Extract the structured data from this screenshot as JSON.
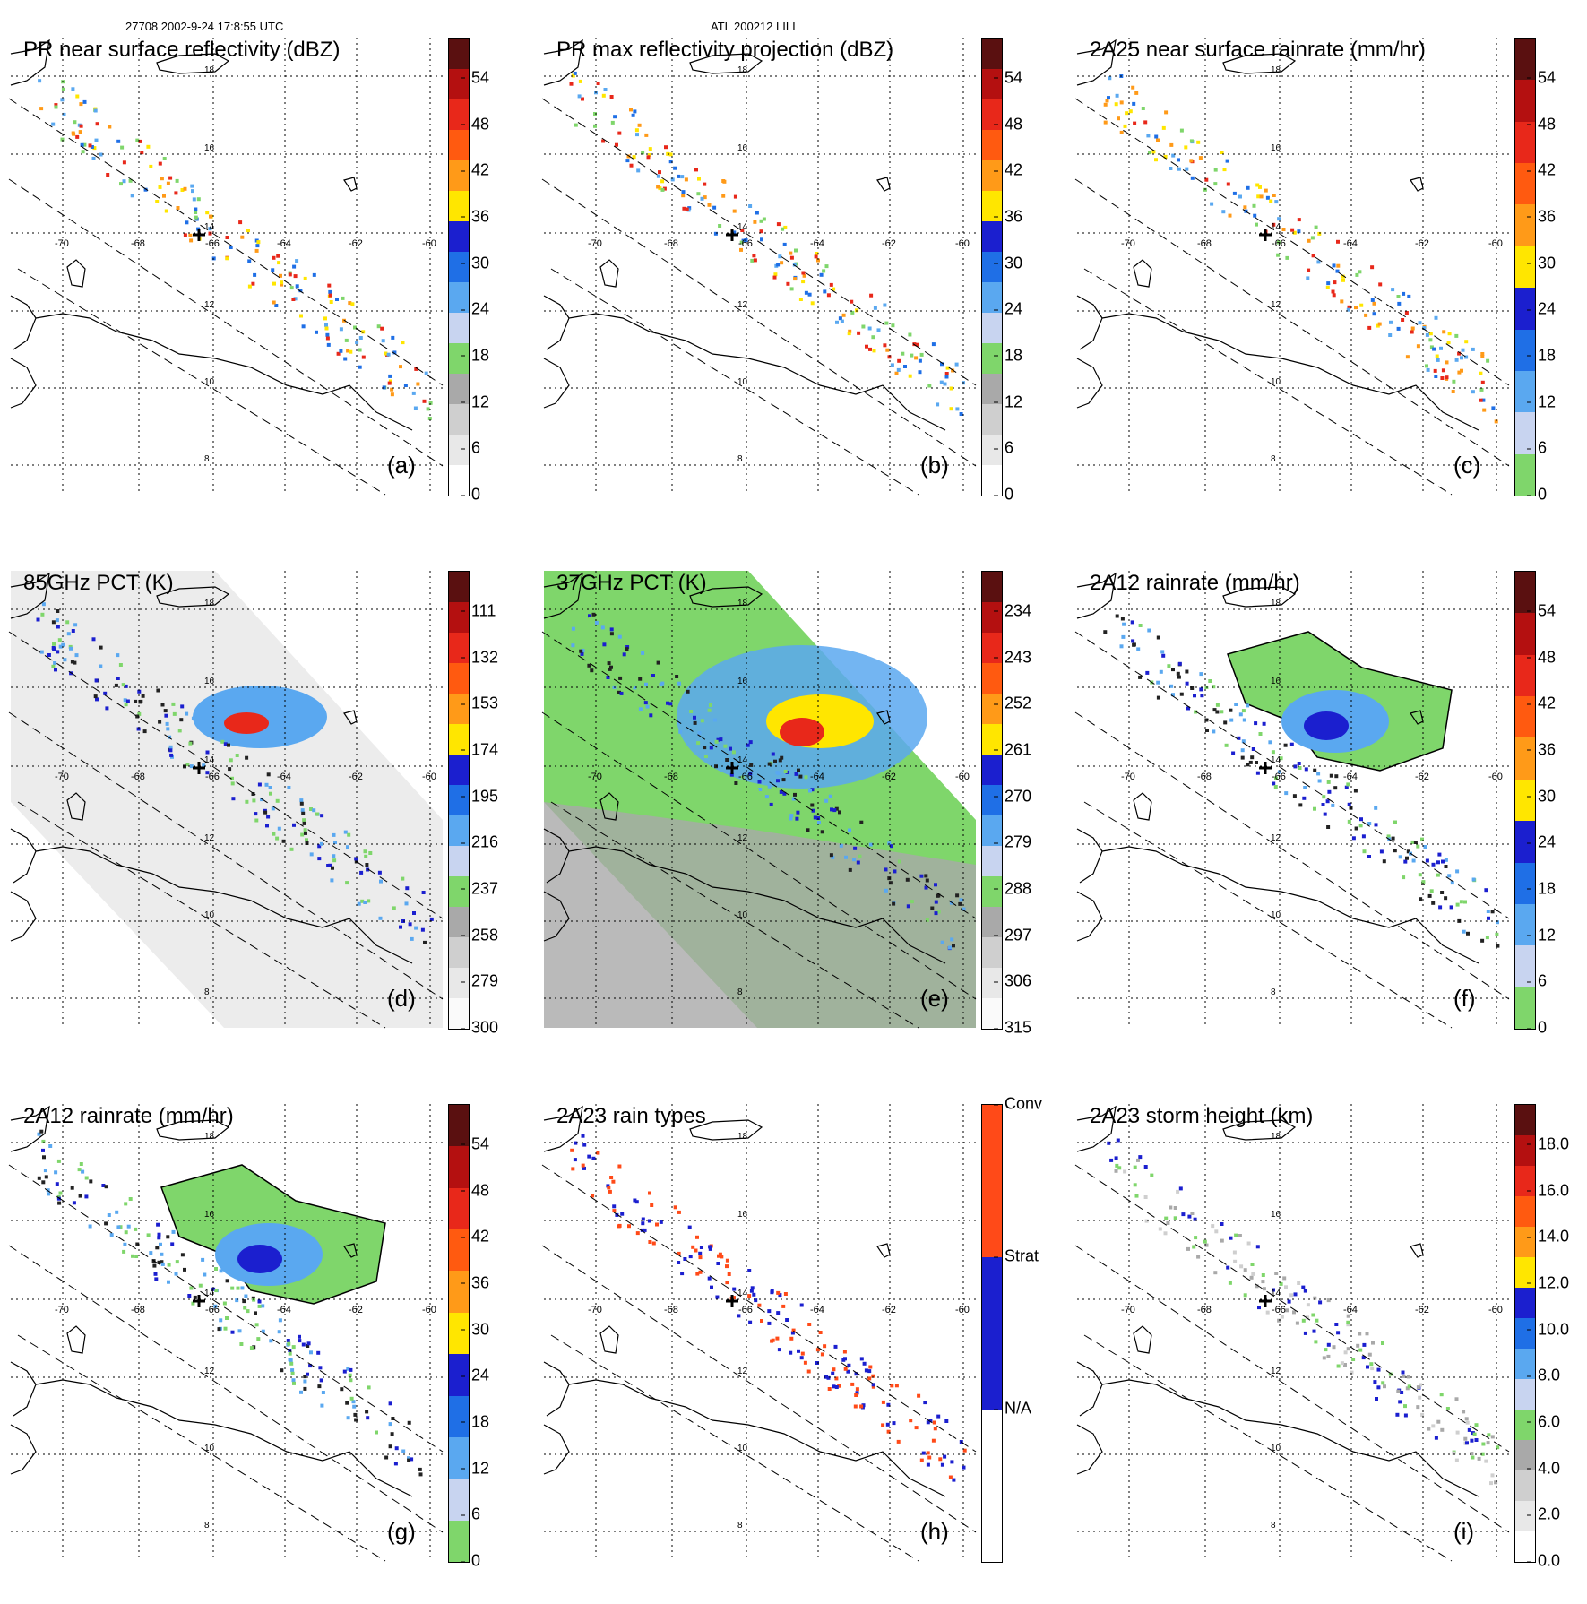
{
  "header": {
    "left": "27708 2002-9-24 17:8:55 UTC",
    "center": "ATL 200212 LILI"
  },
  "map": {
    "lat_labels": [
      "18",
      "16",
      "14",
      "12",
      "10",
      "8"
    ],
    "lon_labels": [
      "-70",
      "-68",
      "-66",
      "-64",
      "-62",
      "-60"
    ]
  },
  "panels": [
    {
      "id": "a",
      "title": "PR near surface reflectivity (dBZ)",
      "label": "(a)",
      "colorbar": {
        "ticks": [
          "54",
          "48",
          "42",
          "36",
          "30",
          "24",
          "18",
          "12",
          "6",
          "0"
        ]
      }
    },
    {
      "id": "b",
      "title": "PR max reflectivity projection (dBZ)",
      "label": "(b)",
      "colorbar": {
        "ticks": [
          "54",
          "48",
          "42",
          "36",
          "30",
          "24",
          "18",
          "12",
          "6",
          "0"
        ]
      }
    },
    {
      "id": "c",
      "title": "2A25 near surface rainrate (mm/hr)",
      "label": "(c)",
      "colorbar": {
        "ticks": [
          "54",
          "48",
          "42",
          "36",
          "30",
          "24",
          "18",
          "12",
          "6",
          "0"
        ]
      }
    },
    {
      "id": "d",
      "title": "85GHz PCT (K)",
      "label": "(d)",
      "colorbar": {
        "ticks": [
          "111",
          "132",
          "153",
          "174",
          "195",
          "216",
          "237",
          "258",
          "279",
          "300"
        ]
      }
    },
    {
      "id": "e",
      "title": "37GHz PCT (K)",
      "label": "(e)",
      "colorbar": {
        "ticks": [
          "234",
          "243",
          "252",
          "261",
          "270",
          "279",
          "288",
          "297",
          "306",
          "315"
        ]
      }
    },
    {
      "id": "f",
      "title": "2A12 rainrate (mm/hr)",
      "label": "(f)",
      "colorbar": {
        "ticks": [
          "54",
          "48",
          "42",
          "36",
          "30",
          "24",
          "18",
          "12",
          "6",
          "0"
        ]
      }
    },
    {
      "id": "g",
      "title": "2A12 rainrate (mm/hr)",
      "label": "(g)",
      "colorbar": {
        "ticks": [
          "54",
          "48",
          "42",
          "36",
          "30",
          "24",
          "18",
          "12",
          "6",
          "0"
        ]
      }
    },
    {
      "id": "h",
      "title": "2A23 rain types",
      "label": "(h)",
      "colorbar": {
        "ticks": [
          "Conv",
          "Strat",
          "N/A"
        ]
      }
    },
    {
      "id": "i",
      "title": "2A23 storm height (km)",
      "label": "(i)",
      "colorbar": {
        "ticks": [
          "18.0",
          "16.0",
          "14.0",
          "12.0",
          "10.0",
          "8.0",
          "6.0",
          "4.0",
          "2.0",
          "0.0"
        ]
      }
    }
  ],
  "colors": {
    "rain_scale": [
      "#7fd66b",
      "#c8d4f0",
      "#5aa8f0",
      "#1f6fe6",
      "#1b1fcf",
      "#ffe600",
      "#ff9a18",
      "#ff5a10",
      "#e8281a",
      "#b41010",
      "#5a1010"
    ],
    "gray_scale": [
      "#f4f4f4",
      "#d6d6d6",
      "#a8a8a8"
    ],
    "conv": "#ff4a18",
    "strat": "#1b1fcf",
    "na": "#ffffff"
  }
}
